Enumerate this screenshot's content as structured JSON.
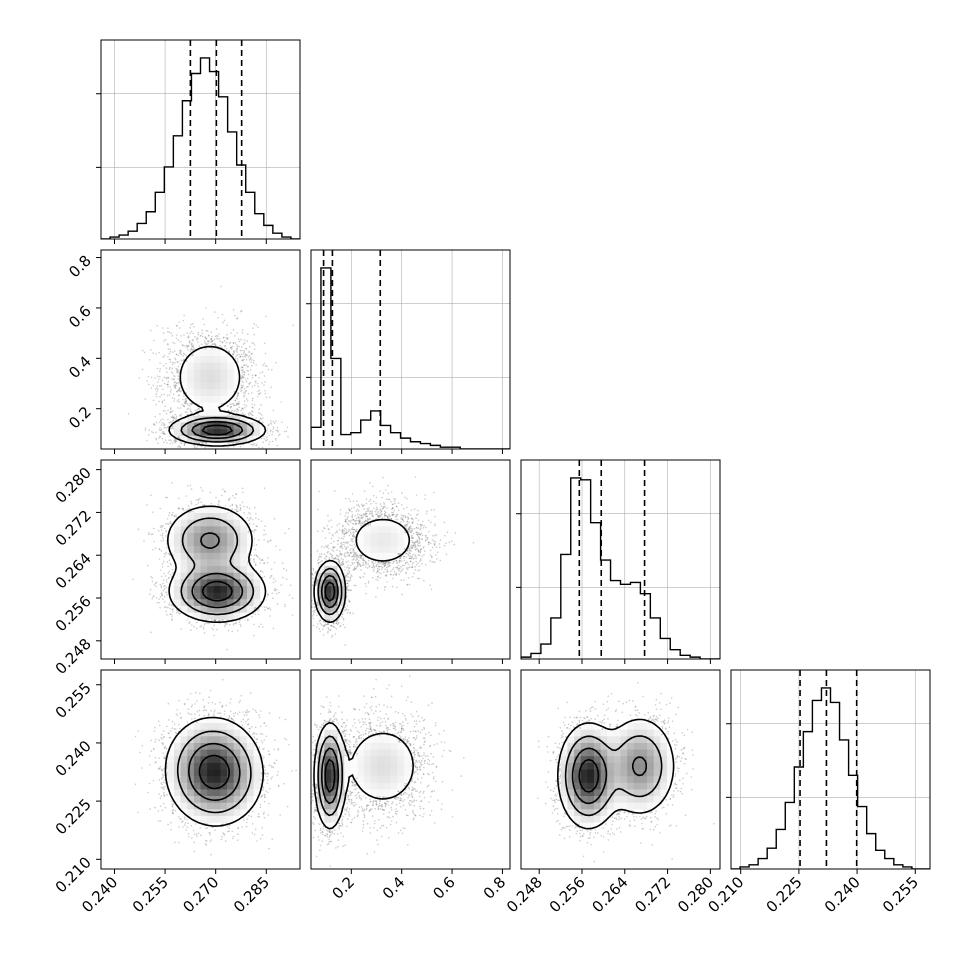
{
  "chart_data": {
    "type": "corner",
    "title": "",
    "parameters": [
      {
        "id": "p1",
        "range": [
          0.236,
          0.295
        ],
        "ticks": [
          0.24,
          0.255,
          0.27,
          0.285
        ],
        "tick_labels": [
          "0.240",
          "0.255",
          "0.270",
          "0.285"
        ],
        "quantiles": [
          0.2625,
          0.2702,
          0.2777
        ]
      },
      {
        "id": "p2",
        "range": [
          0.04,
          0.83
        ],
        "ticks": [
          0.2,
          0.4,
          0.6,
          0.8
        ],
        "tick_labels": [
          "0.2",
          "0.4",
          "0.6",
          "0.8"
        ],
        "quantiles": [
          0.09,
          0.125,
          0.315
        ]
      },
      {
        "id": "p3",
        "range": [
          0.2446,
          0.2818
        ],
        "ticks": [
          0.248,
          0.256,
          0.264,
          0.272,
          0.28
        ],
        "tick_labels": [
          "0.248",
          "0.256",
          "0.264",
          "0.272",
          "0.280"
        ],
        "quantiles": [
          0.2555,
          0.2596,
          0.2677
        ]
      },
      {
        "id": "p4",
        "range": [
          0.2075,
          0.2588
        ],
        "ticks": [
          0.21,
          0.225,
          0.24,
          0.255
        ],
        "tick_labels": [
          "0.210",
          "0.225",
          "0.240",
          "0.255"
        ],
        "quantiles": [
          0.2253,
          0.2321,
          0.2399
        ]
      }
    ],
    "histograms": [
      {
        "param": "p1",
        "bin_edges_range": [
          0.236,
          0.295
        ],
        "counts": [
          0,
          1,
          2,
          4,
          8,
          14,
          24,
          37,
          53,
          71,
          85,
          93,
          86,
          73,
          55,
          38,
          24,
          13,
          7,
          3,
          1,
          0
        ]
      },
      {
        "param": "p2",
        "bin_edges_range": [
          0.04,
          0.83
        ],
        "counts": [
          12,
          100,
          50,
          8,
          9,
          16,
          21,
          13,
          9,
          6,
          4,
          3,
          2,
          1,
          1,
          0,
          0,
          0,
          0,
          0
        ]
      },
      {
        "param": "p3",
        "bin_edges_range": [
          0.2446,
          0.2818
        ],
        "counts": [
          1,
          3,
          8,
          22,
          56,
          97,
          96,
          73,
          53,
          42,
          40,
          41,
          35,
          22,
          11,
          5,
          2,
          1,
          0,
          0
        ]
      },
      {
        "param": "p4",
        "bin_edges_range": [
          0.2075,
          0.2588
        ],
        "counts": [
          0,
          1,
          2,
          5,
          10,
          19,
          32,
          49,
          66,
          81,
          87,
          80,
          62,
          45,
          30,
          17,
          9,
          5,
          2,
          1,
          0,
          0
        ]
      }
    ],
    "density_components": [
      {
        "weight": 0.58,
        "mean": [
          0.2705,
          0.115,
          0.2572,
          0.2315
        ],
        "sd": [
          0.0065,
          0.028,
          0.0026,
          0.0062
        ]
      },
      {
        "weight": 0.42,
        "mean": [
          0.2683,
          0.325,
          0.2668,
          0.234
        ],
        "sd": [
          0.0065,
          0.09,
          0.0033,
          0.0063
        ]
      }
    ],
    "contour_levels": 4,
    "quantile_lines": [
      0.16,
      0.5,
      0.84
    ],
    "grid": true,
    "colors": {
      "contour": "#000000",
      "points": "#6e6e6e",
      "fill_dark": "#222222",
      "grid": "#b0b0b0"
    }
  }
}
